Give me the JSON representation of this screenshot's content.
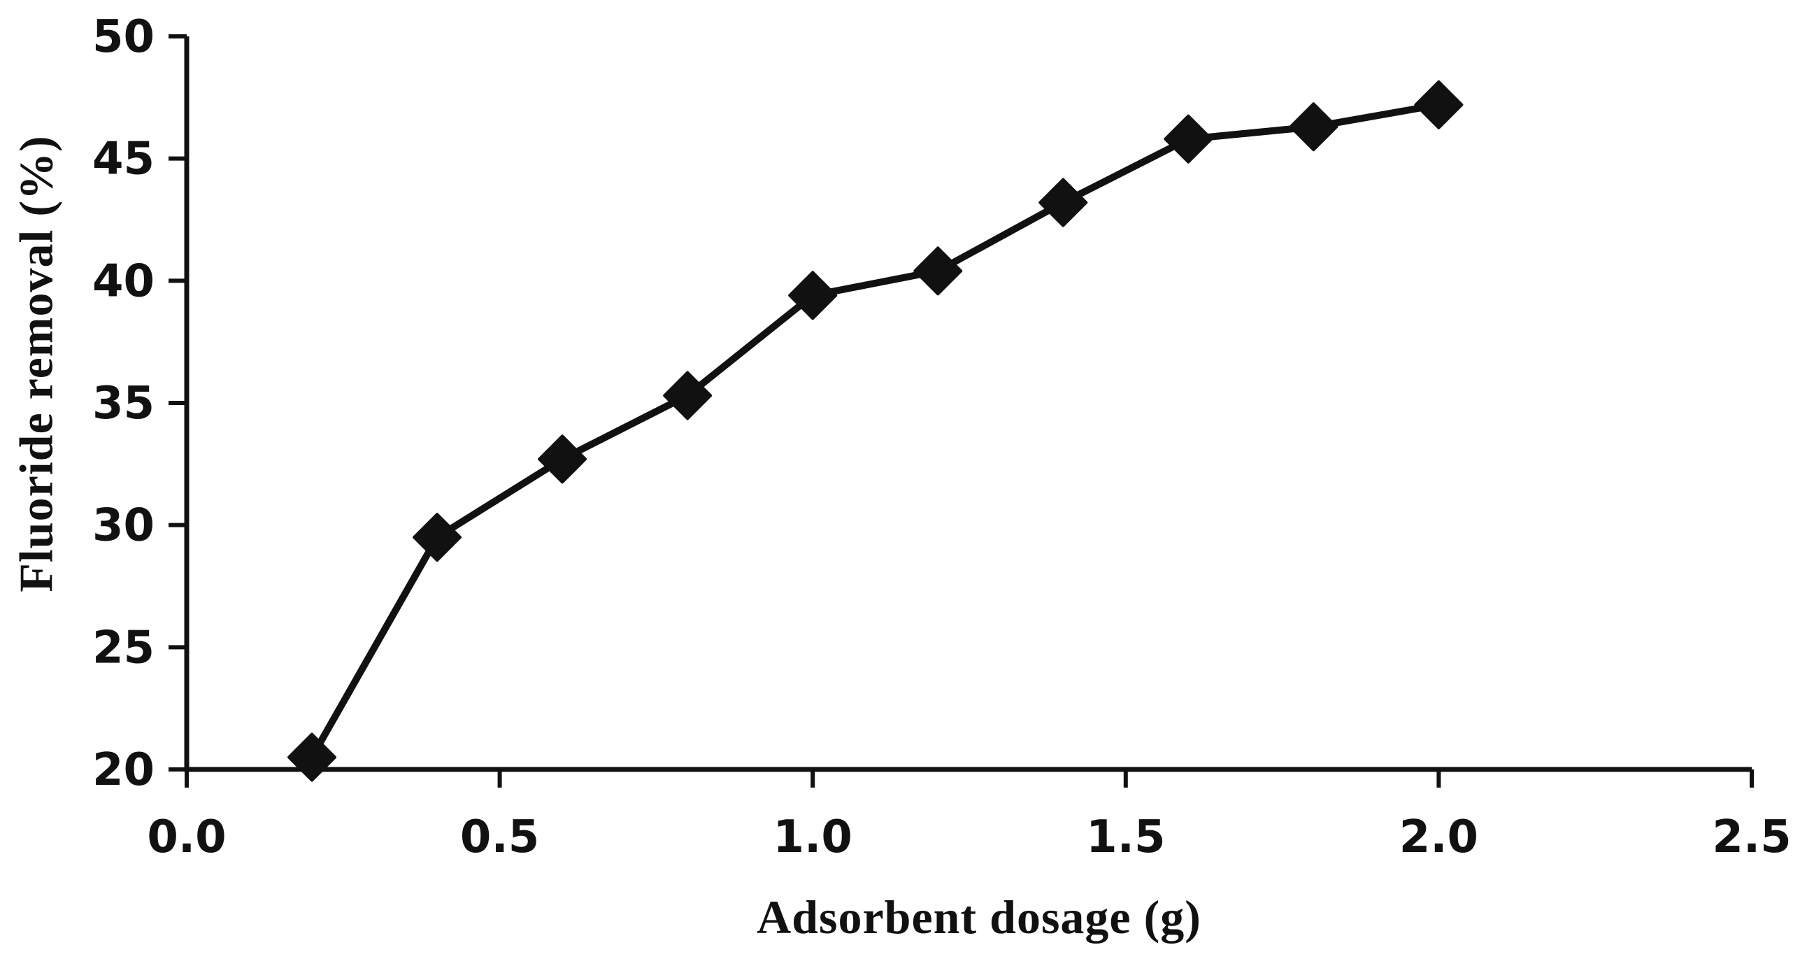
{
  "figure": {
    "background": "#ffffff",
    "ink_color": "#111111"
  },
  "chart_data": {
    "type": "line",
    "title": "",
    "xlabel": "Adsorbent dosage (g)",
    "ylabel": "Fluoride removal (%)",
    "x": [
      0.2,
      0.4,
      0.6,
      0.8,
      1.0,
      1.2,
      1.4,
      1.6,
      1.8,
      2.0
    ],
    "y": [
      20.5,
      29.5,
      32.7,
      35.3,
      39.4,
      40.4,
      43.2,
      45.8,
      46.3,
      47.2
    ],
    "series_name": "Fluoride removal",
    "xlim": [
      0.0,
      2.5
    ],
    "ylim": [
      20,
      50
    ],
    "x_tick_values": [
      0.0,
      0.5,
      1.0,
      1.5,
      2.0,
      2.5
    ],
    "x_tick_labels": [
      "0.0",
      "0.5",
      "1.0",
      "1.5",
      "2.0",
      "2.5"
    ],
    "y_tick_values": [
      20,
      25,
      30,
      35,
      40,
      45,
      50
    ],
    "y_tick_labels": [
      "20",
      "25",
      "30",
      "35",
      "40",
      "45",
      "50"
    ],
    "marker": "diamond",
    "line_color": "#111111",
    "marker_color": "#111111",
    "grid": false,
    "legend_position": "none"
  }
}
